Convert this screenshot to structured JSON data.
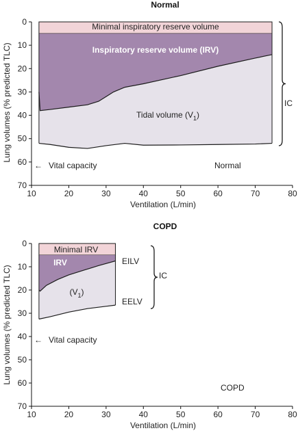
{
  "colors": {
    "minimal_irv": "#f2d4d8",
    "irv": "#a387ad",
    "tidal": "#e6e2ea",
    "line": "#1a1a1a",
    "irv_text": "#ffffff"
  },
  "chart_data": [
    {
      "type": "area",
      "title": "Normal",
      "xlabel": "Ventilation (L/min)",
      "ylabel": "Lung volumes (% predicted TLC)",
      "xlim": [
        10,
        80
      ],
      "ylim": [
        0,
        70
      ],
      "y_inverted": true,
      "x_ticks": [
        10,
        20,
        30,
        40,
        50,
        60,
        70,
        80
      ],
      "y_ticks": [
        0,
        10,
        20,
        30,
        40,
        50,
        60,
        70
      ],
      "min_irv_boundary": {
        "x": [
          12,
          74.5
        ],
        "y": 5
      },
      "eilv": {
        "x": [
          12,
          12.3,
          15,
          20,
          25,
          28,
          30,
          32,
          35,
          40,
          50,
          60,
          70,
          74.5
        ],
        "y": [
          30,
          38,
          37.5,
          36.5,
          35.5,
          34,
          32,
          30,
          28,
          26.5,
          23,
          19,
          15.5,
          14
        ]
      },
      "eelv": {
        "x": [
          12,
          15,
          20,
          25,
          30,
          35,
          40,
          50,
          60,
          70,
          74.5
        ],
        "y": [
          52,
          52.5,
          53.7,
          54.2,
          53,
          52,
          52.8,
          52.7,
          52.5,
          52.3,
          52
        ]
      },
      "ic_bracket": {
        "y": [
          0,
          53
        ]
      },
      "labels": {
        "minimal_irv": "Minimal inspiratory reserve volume",
        "irv": "Inspiratory reserve volume (IRV)",
        "tidal_prefix": "Tidal volume (V",
        "tidal_sub": "1",
        "tidal_suffix": ")",
        "ic": "IC",
        "vital_capacity": "Vital capacity",
        "panel": "Normal"
      }
    },
    {
      "type": "area",
      "title": "COPD",
      "xlabel": "Ventilation (L/min)",
      "ylabel": "Lung volumes (% predicted TLC)",
      "xlim": [
        10,
        80
      ],
      "ylim": [
        0,
        70
      ],
      "y_inverted": true,
      "x_ticks": [
        10,
        20,
        30,
        40,
        50,
        60,
        70,
        80
      ],
      "y_ticks": [
        0,
        10,
        20,
        30,
        40,
        50,
        60,
        70
      ],
      "min_irv_boundary": {
        "x": [
          12,
          32.5
        ],
        "y": 5
      },
      "eilv": {
        "x": [
          12,
          12.3,
          14,
          17,
          20,
          24,
          28,
          32.5
        ],
        "y": [
          20,
          20.5,
          18,
          15.5,
          13.5,
          11.5,
          9.5,
          7.5
        ]
      },
      "eelv": {
        "x": [
          12,
          15,
          20,
          25,
          30,
          32.5
        ],
        "y": [
          32.5,
          31.5,
          29.5,
          28,
          27,
          26.5
        ]
      },
      "ic_bracket": {
        "y": [
          1,
          28
        ]
      },
      "labels": {
        "minimal_irv": "Minimal IRV",
        "irv": "IRV",
        "tidal_prefix": "(V",
        "tidal_sub": "1",
        "tidal_suffix": ")",
        "ic": "IC",
        "eilv": "EILV",
        "eelv": "EELV",
        "vital_capacity": "Vital capacity",
        "panel": "COPD"
      }
    }
  ]
}
